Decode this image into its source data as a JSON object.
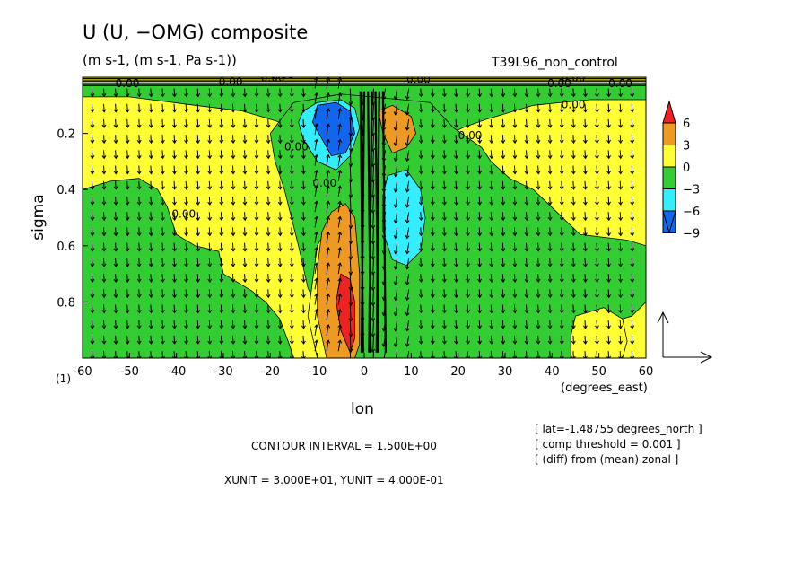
{
  "header": {
    "title": "U (U, −OMG) composite",
    "subtitle": "(m s-1, (m s-1, Pa s-1))",
    "run_name": "T39L96_non_control"
  },
  "footer": {
    "contour_interval": "CONTOUR INTERVAL = 1.500E+00",
    "vector_units": "XUNIT = 3.000E+01, YUNIT = 4.000E-01",
    "notes": [
      "[ lat=-1.48755 degrees_north ]",
      "[ comp threshold = 0.001 ]",
      "[ (diff) from (mean) zonal ]"
    ]
  },
  "colors": {
    "red": "#ee2222",
    "orange": "#ee9922",
    "yellow": "#ffff33",
    "green": "#33cc33",
    "cyan": "#33eeff",
    "blue": "#1166ee"
  },
  "chart_data": {
    "type": "heatmap",
    "xlabel": "lon",
    "xunits": "(degrees_east)",
    "ylabel": "sigma",
    "xlim": [
      -60,
      60
    ],
    "ylim": [
      0.0,
      1.0
    ],
    "y_inverted": true,
    "x_ticks": [
      -60,
      -50,
      -40,
      -30,
      -20,
      -10,
      0,
      10,
      20,
      30,
      40,
      50,
      60
    ],
    "y_ticks": [
      0.2,
      0.4,
      0.6,
      0.8
    ],
    "corner_label": "(1)",
    "colorbar": {
      "ticks": [
        "6",
        "3",
        "0",
        "−3",
        "−6",
        "−9"
      ],
      "levels": [
        {
          "color": "red",
          "range": [
            6,
            9
          ]
        },
        {
          "color": "orange",
          "range": [
            3,
            6
          ]
        },
        {
          "color": "yellow",
          "range": [
            0,
            3
          ]
        },
        {
          "color": "green",
          "range": [
            -3,
            0
          ]
        },
        {
          "color": "cyan",
          "range": [
            -6,
            -3
          ]
        },
        {
          "color": "blue",
          "range": [
            -9,
            -6
          ]
        }
      ]
    },
    "contour_labels": [
      {
        "text": "0.00",
        "x": -53,
        "y": 0.035
      },
      {
        "text": "0.00",
        "x": -31,
        "y": 0.03
      },
      {
        "text": "0.00",
        "x": -22,
        "y": 0.015
      },
      {
        "text": "0.00",
        "x": -20,
        "y": 0.005
      },
      {
        "text": "0.00",
        "x": 9,
        "y": 0.02
      },
      {
        "text": "0.00",
        "x": 39,
        "y": 0.035
      },
      {
        "text": "0.00",
        "x": 52,
        "y": 0.035
      },
      {
        "text": "0.00",
        "x": 42,
        "y": 0.015
      },
      {
        "text": "0.00",
        "x": 42,
        "y": 0.11
      },
      {
        "text": "0.00",
        "x": 20,
        "y": 0.22
      },
      {
        "text": "0.00",
        "x": -41,
        "y": 0.5
      },
      {
        "text": "0.00",
        "x": -17,
        "y": 0.26
      },
      {
        "text": "0.00",
        "x": -11,
        "y": 0.39
      }
    ],
    "regions": [
      {
        "level": "green",
        "points": [
          [
            -60,
            0.4
          ],
          [
            -54,
            0.37
          ],
          [
            -48,
            0.36
          ],
          [
            -44,
            0.4
          ],
          [
            -42,
            0.46
          ],
          [
            -40,
            0.56
          ],
          [
            -36,
            0.6
          ],
          [
            -31,
            0.62
          ],
          [
            -30,
            0.7
          ],
          [
            -24,
            0.76
          ],
          [
            -21,
            0.8
          ],
          [
            -18,
            0.86
          ],
          [
            -16,
            0.95
          ],
          [
            -15,
            1.0
          ],
          [
            -60,
            1.0
          ]
        ]
      },
      {
        "level": "green",
        "points": [
          [
            -60,
            0.02
          ],
          [
            60,
            0.02
          ],
          [
            60,
            0.08
          ],
          [
            48,
            0.08
          ],
          [
            36,
            0.1
          ],
          [
            30,
            0.13
          ],
          [
            26,
            0.15
          ],
          [
            21,
            0.18
          ],
          [
            16,
            0.22
          ],
          [
            10,
            0.25
          ],
          [
            4,
            0.24
          ],
          [
            2,
            0.22
          ],
          [
            -2,
            0.19
          ],
          [
            -8,
            0.21
          ],
          [
            -14,
            0.19
          ],
          [
            -18,
            0.16
          ],
          [
            -22,
            0.14
          ],
          [
            -26,
            0.12
          ],
          [
            -36,
            0.1
          ],
          [
            -50,
            0.07
          ],
          [
            -60,
            0.07
          ]
        ]
      },
      {
        "level": "green",
        "points": [
          [
            -20,
            0.2
          ],
          [
            -15,
            0.09
          ],
          [
            -5,
            0.06
          ],
          [
            8,
            0.08
          ],
          [
            14,
            0.09
          ],
          [
            19,
            0.18
          ],
          [
            25,
            0.25
          ],
          [
            27,
            0.3
          ],
          [
            31,
            0.36
          ],
          [
            36,
            0.4
          ],
          [
            41,
            0.48
          ],
          [
            46,
            0.56
          ],
          [
            56,
            0.58
          ],
          [
            60,
            0.6
          ],
          [
            60,
            0.8
          ],
          [
            57,
            0.85
          ],
          [
            55,
            0.86
          ],
          [
            52,
            0.9
          ],
          [
            50,
            1.0
          ],
          [
            0,
            1.0
          ],
          [
            -6,
            1.0
          ],
          [
            -8,
            0.9
          ],
          [
            -12,
            0.75
          ],
          [
            -14,
            0.6
          ],
          [
            -17,
            0.4
          ],
          [
            -19,
            0.3
          ]
        ]
      },
      {
        "level": "yellow",
        "points": [
          [
            45,
            0.85
          ],
          [
            51,
            0.82
          ],
          [
            55,
            0.86
          ],
          [
            56,
            0.94
          ],
          [
            55,
            1.0
          ],
          [
            44,
            1.0
          ],
          [
            44,
            0.92
          ]
        ]
      },
      {
        "level": "yellow",
        "points": [
          [
            -10,
            0.6
          ],
          [
            -5,
            0.45
          ],
          [
            -2,
            0.5
          ],
          [
            -1,
            0.8
          ],
          [
            -2,
            1.0
          ],
          [
            -10,
            1.0
          ],
          [
            -12,
            0.85
          ]
        ]
      },
      {
        "level": "orange",
        "points": [
          [
            -9,
            0.55
          ],
          [
            -7,
            0.48
          ],
          [
            -4,
            0.45
          ],
          [
            -2,
            0.5
          ],
          [
            -1,
            0.7
          ],
          [
            -1,
            0.95
          ],
          [
            -2,
            1.0
          ],
          [
            -8,
            1.0
          ],
          [
            -10,
            0.85
          ],
          [
            -10,
            0.68
          ]
        ]
      },
      {
        "level": "red",
        "points": [
          [
            -5,
            0.7
          ],
          [
            -3,
            0.72
          ],
          [
            -2,
            0.8
          ],
          [
            -2,
            0.93
          ],
          [
            -3,
            0.98
          ],
          [
            -5,
            0.9
          ],
          [
            -6,
            0.8
          ]
        ]
      },
      {
        "level": "orange",
        "points": [
          [
            3,
            0.12
          ],
          [
            6,
            0.1
          ],
          [
            10,
            0.14
          ],
          [
            11,
            0.2
          ],
          [
            9,
            0.25
          ],
          [
            6,
            0.27
          ],
          [
            4,
            0.2
          ]
        ]
      },
      {
        "level": "cyan",
        "points": [
          [
            -13,
            0.12
          ],
          [
            -10,
            0.09
          ],
          [
            -5,
            0.08
          ],
          [
            -2,
            0.11
          ],
          [
            -1,
            0.18
          ],
          [
            -3,
            0.28
          ],
          [
            -6,
            0.33
          ],
          [
            -10,
            0.3
          ],
          [
            -13,
            0.22
          ],
          [
            -14,
            0.16
          ]
        ]
      },
      {
        "level": "blue",
        "points": [
          [
            -10,
            0.1
          ],
          [
            -6,
            0.09
          ],
          [
            -3,
            0.12
          ],
          [
            -2,
            0.2
          ],
          [
            -4,
            0.27
          ],
          [
            -7,
            0.28
          ],
          [
            -9,
            0.22
          ],
          [
            -11,
            0.16
          ]
        ]
      },
      {
        "level": "cyan",
        "points": [
          [
            5,
            0.35
          ],
          [
            9,
            0.33
          ],
          [
            12,
            0.4
          ],
          [
            13,
            0.5
          ],
          [
            12,
            0.62
          ],
          [
            9,
            0.67
          ],
          [
            6,
            0.65
          ],
          [
            4,
            0.55
          ],
          [
            4,
            0.42
          ]
        ]
      }
    ]
  }
}
